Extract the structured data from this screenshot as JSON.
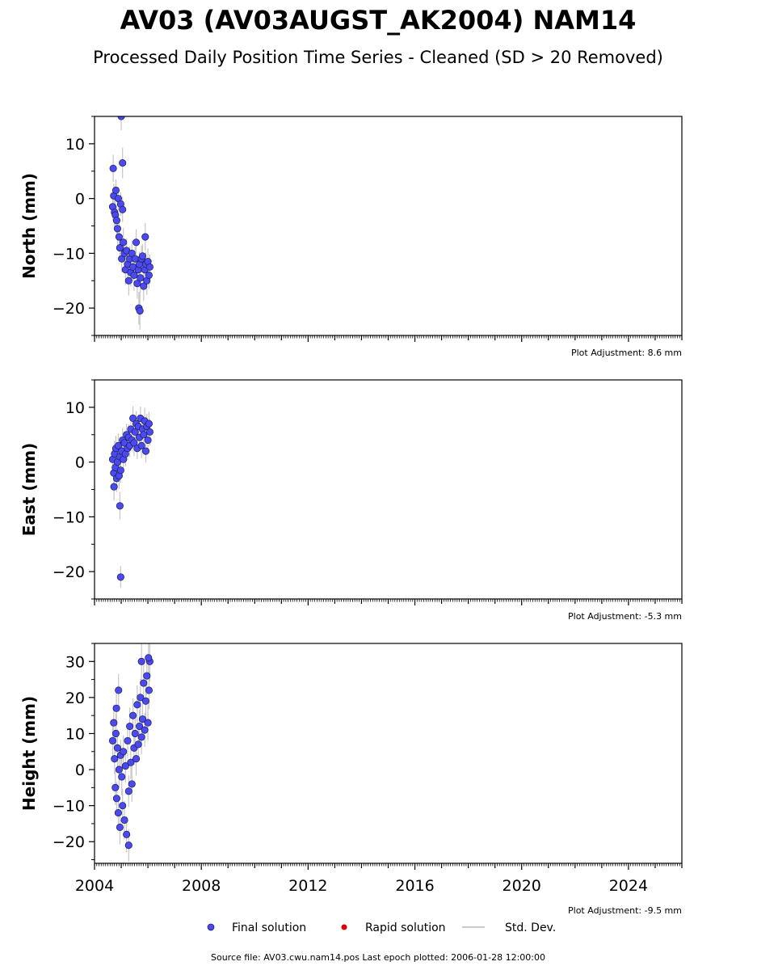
{
  "title": "AV03 (AV03AUGST_AK2004) NAM14",
  "subtitle": "Processed Daily Position Time Series - Cleaned (SD > 20 Removed)",
  "colors": {
    "final": "#4a4af0",
    "final_edge": "#1a1a5a",
    "rapid": "#dd0000",
    "stddev": "#b8b8b8"
  },
  "legend": {
    "final": "Final solution",
    "rapid": "Rapid solution",
    "stddev": "Std. Dev."
  },
  "footer": "Source file: AV03.cwu.nam14.pos  Last epoch plotted: 2006-01-28 12:00:00",
  "chart_data": [
    {
      "type": "scatter",
      "ylabel": "North (mm)",
      "xlim": [
        2004.0,
        2026.0
      ],
      "ylim": [
        -25,
        15
      ],
      "yticks": [
        10,
        0,
        -10,
        -20
      ],
      "yticklabels": [
        "10",
        "0",
        "−10",
        "−20"
      ],
      "adjustment": "Plot Adjustment: 8.6 mm",
      "x": [
        2004.68,
        2004.72,
        2004.75,
        2004.78,
        2004.8,
        2004.83,
        2004.86,
        2004.89,
        2004.92,
        2004.95,
        2004.98,
        2005.02,
        2005.05,
        2005.08,
        2005.12,
        2005.16,
        2005.2,
        2005.24,
        2005.28,
        2005.32,
        2005.36,
        2005.4,
        2005.44,
        2005.48,
        2005.52,
        2005.56,
        2005.6,
        2005.64,
        2005.68,
        2005.72,
        2005.76,
        2005.8,
        2005.84,
        2005.88,
        2005.92,
        2005.96,
        2006.0,
        2006.04,
        2006.07,
        2004.7,
        2005.0,
        2005.05,
        2005.66,
        2005.7,
        2005.9
      ],
      "y": [
        -1.5,
        0.5,
        -2.5,
        -3.0,
        1.5,
        -4.0,
        -5.5,
        0.0,
        -7.0,
        -9.0,
        -1.0,
        -11.0,
        -2.0,
        -8.0,
        -10.0,
        -13.0,
        -9.5,
        -12.0,
        -15.0,
        -11.0,
        -13.5,
        -10.0,
        -12.5,
        -14.0,
        -11.0,
        -8.0,
        -15.5,
        -13.0,
        -12.0,
        -14.5,
        -11.0,
        -10.5,
        -16.0,
        -13.0,
        -12.0,
        -15.0,
        -11.5,
        -14.0,
        -12.5,
        5.5,
        15.0,
        6.5,
        -20.0,
        -20.5,
        -7.0
      ],
      "err": [
        2.5,
        2.2,
        2.8,
        2.4,
        2.0,
        2.6,
        2.9,
        2.1,
        2.7,
        2.4,
        2.2,
        2.5,
        2.3,
        2.6,
        2.4,
        2.8,
        2.2,
        2.5,
        2.7,
        2.3,
        2.6,
        2.4,
        2.5,
        2.9,
        2.2,
        2.4,
        2.8,
        2.5,
        2.3,
        2.6,
        2.4,
        2.2,
        2.7,
        2.5,
        2.3,
        2.6,
        2.4,
        2.5,
        2.3,
        2.5,
        2.5,
        2.8,
        3.0,
        3.5,
        2.5
      ]
    },
    {
      "type": "scatter",
      "ylabel": "East (mm)",
      "xlim": [
        2004.0,
        2026.0
      ],
      "ylim": [
        -25,
        15
      ],
      "yticks": [
        10,
        0,
        -10,
        -20
      ],
      "yticklabels": [
        "10",
        "0",
        "−10",
        "−20"
      ],
      "adjustment": "Plot Adjustment: -5.3 mm",
      "x": [
        2004.68,
        2004.72,
        2004.75,
        2004.78,
        2004.8,
        2004.83,
        2004.86,
        2004.89,
        2004.92,
        2004.95,
        2004.98,
        2005.02,
        2005.05,
        2005.08,
        2005.12,
        2005.16,
        2005.2,
        2005.24,
        2005.28,
        2005.32,
        2005.36,
        2005.4,
        2005.44,
        2005.48,
        2005.52,
        2005.56,
        2005.6,
        2005.64,
        2005.68,
        2005.72,
        2005.76,
        2005.8,
        2005.84,
        2005.88,
        2005.92,
        2005.96,
        2006.0,
        2006.04,
        2006.07,
        2004.73,
        2004.95,
        2004.98
      ],
      "y": [
        0.5,
        -2.0,
        1.5,
        -1.0,
        2.5,
        -3.0,
        0.0,
        3.0,
        -2.5,
        1.0,
        -1.5,
        2.0,
        4.0,
        0.5,
        3.5,
        1.5,
        5.0,
        2.5,
        4.5,
        3.0,
        6.0,
        4.0,
        8.0,
        3.5,
        5.5,
        7.0,
        2.5,
        6.5,
        4.5,
        8.0,
        3.0,
        6.0,
        5.0,
        7.5,
        2.0,
        6.5,
        4.0,
        7.0,
        5.5,
        -4.5,
        -8.0,
        -21.0
      ],
      "err": [
        2.2,
        2.0,
        2.4,
        2.1,
        2.3,
        2.5,
        2.0,
        2.2,
        2.4,
        2.1,
        2.3,
        2.0,
        2.2,
        2.4,
        2.1,
        2.3,
        2.0,
        2.2,
        2.4,
        2.1,
        2.3,
        2.0,
        2.2,
        2.4,
        2.1,
        2.3,
        2.0,
        2.2,
        2.4,
        2.1,
        2.3,
        2.0,
        2.2,
        2.4,
        2.1,
        2.3,
        2.0,
        2.2,
        2.4,
        2.5,
        2.5,
        2.0
      ]
    },
    {
      "type": "scatter",
      "ylabel": "Height (mm)",
      "xlim": [
        2004.0,
        2026.0
      ],
      "ylim": [
        -26,
        35
      ],
      "yticks": [
        30,
        20,
        10,
        0,
        -10,
        -20
      ],
      "yticklabels": [
        "30",
        "20",
        "10",
        "0",
        "−10",
        "−20"
      ],
      "xticks": [
        2004,
        2008,
        2012,
        2016,
        2020,
        2024
      ],
      "xticklabels": [
        "2004",
        "2008",
        "2012",
        "2016",
        "2020",
        "2024"
      ],
      "adjustment": "Plot Adjustment: -9.5 mm",
      "x": [
        2004.68,
        2004.72,
        2004.75,
        2004.78,
        2004.8,
        2004.83,
        2004.86,
        2004.89,
        2004.92,
        2004.95,
        2004.98,
        2005.02,
        2005.05,
        2005.08,
        2005.12,
        2005.16,
        2005.2,
        2005.24,
        2005.28,
        2005.32,
        2005.36,
        2005.4,
        2005.44,
        2005.48,
        2005.52,
        2005.56,
        2005.6,
        2005.64,
        2005.68,
        2005.72,
        2005.76,
        2005.8,
        2005.84,
        2005.88,
        2005.92,
        2005.96,
        2006.0,
        2006.04,
        2006.07,
        2004.82,
        2004.9,
        2005.28,
        2005.76,
        2006.02
      ],
      "y": [
        8.0,
        13.0,
        3.0,
        -5.0,
        10.0,
        -8.0,
        6.0,
        -12.0,
        0.0,
        -16.0,
        4.0,
        -2.0,
        -10.0,
        5.0,
        -14.0,
        1.0,
        -18.0,
        8.0,
        -6.0,
        12.0,
        2.0,
        -4.0,
        15.0,
        6.0,
        10.0,
        3.0,
        18.0,
        7.0,
        12.0,
        20.0,
        9.0,
        14.0,
        24.0,
        11.0,
        19.0,
        26.0,
        13.0,
        22.0,
        30.0,
        17.0,
        22.0,
        -21.0,
        30.0,
        31.0
      ],
      "err": [
        4.5,
        5.0,
        4.2,
        4.8,
        5.5,
        4.6,
        5.2,
        4.4,
        5.0,
        4.8,
        4.3,
        5.1,
        4.7,
        4.5,
        5.3,
        4.6,
        5.0,
        4.8,
        4.4,
        5.2,
        4.6,
        5.0,
        4.8,
        4.5,
        5.1,
        4.7,
        5.4,
        4.9,
        4.6,
        5.2,
        4.8,
        5.0,
        5.5,
        4.7,
        5.1,
        5.3,
        4.9,
        5.2,
        5.5,
        5.0,
        4.5,
        4.5,
        5.5,
        5.0
      ]
    }
  ]
}
